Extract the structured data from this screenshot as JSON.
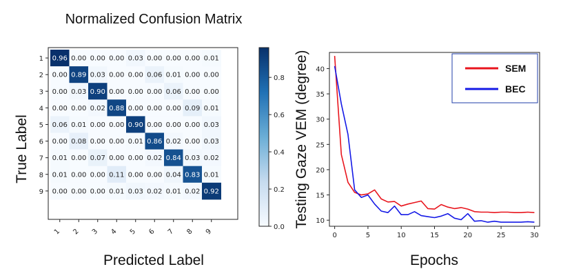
{
  "chart_data": [
    {
      "type": "heatmap",
      "title": "Normalized Confusion Matrix",
      "xlabel": "Predicted Label",
      "ylabel": "True Label",
      "x_tick_labels": [
        "1",
        "2",
        "3",
        "4",
        "5",
        "6",
        "7",
        "8",
        "9"
      ],
      "y_tick_labels": [
        "1",
        "2",
        "3",
        "4",
        "5",
        "6",
        "7",
        "8",
        "9"
      ],
      "matrix": [
        [
          0.96,
          0.0,
          0.0,
          0.0,
          0.03,
          0.0,
          0.0,
          0.0,
          0.01
        ],
        [
          0.0,
          0.89,
          0.03,
          0.0,
          0.0,
          0.06,
          0.01,
          0.0,
          0.0
        ],
        [
          0.0,
          0.03,
          0.9,
          0.0,
          0.0,
          0.0,
          0.06,
          0.0,
          0.0
        ],
        [
          0.0,
          0.0,
          0.02,
          0.88,
          0.0,
          0.0,
          0.0,
          0.09,
          0.01
        ],
        [
          0.06,
          0.01,
          0.0,
          0.0,
          0.9,
          0.0,
          0.0,
          0.0,
          0.03
        ],
        [
          0.0,
          0.08,
          0.0,
          0.0,
          0.01,
          0.86,
          0.02,
          0.0,
          0.03
        ],
        [
          0.01,
          0.0,
          0.07,
          0.0,
          0.0,
          0.02,
          0.84,
          0.03,
          0.02
        ],
        [
          0.01,
          0.0,
          0.0,
          0.11,
          0.0,
          0.0,
          0.04,
          0.83,
          0.01
        ],
        [
          0.0,
          0.0,
          0.0,
          0.01,
          0.03,
          0.02,
          0.01,
          0.02,
          0.92
        ]
      ],
      "colorbar": {
        "range": [
          0.0,
          0.96
        ],
        "ticks": [
          0.0,
          0.2,
          0.4,
          0.6,
          0.8
        ],
        "colormap": "Blues"
      }
    },
    {
      "type": "line",
      "title": "",
      "xlabel": "Epochs",
      "ylabel": "Testing  Gaze VEM (degree)",
      "xlim": [
        0,
        30
      ],
      "ylim": [
        8.8,
        43.2
      ],
      "x_ticks": [
        0,
        5,
        10,
        15,
        20,
        25,
        30
      ],
      "y_ticks": [
        10,
        15,
        20,
        25,
        30,
        35,
        40
      ],
      "legend_position": "top-right",
      "x": [
        0,
        1,
        2,
        3,
        4,
        5,
        6,
        7,
        8,
        9,
        10,
        11,
        12,
        13,
        14,
        15,
        16,
        17,
        18,
        19,
        20,
        21,
        22,
        23,
        24,
        25,
        26,
        27,
        28,
        29,
        30
      ],
      "series": [
        {
          "name": "SEM",
          "color": "#e8141c",
          "values": [
            42.5,
            23,
            17.5,
            15.5,
            15,
            15.2,
            16,
            14.2,
            13.6,
            13.7,
            12.8,
            13.2,
            13.5,
            13.8,
            12.3,
            12.2,
            13.1,
            12.6,
            12.3,
            12.5,
            12.2,
            11.7,
            11.6,
            11.6,
            11.5,
            11.6,
            11.6,
            11.5,
            11.5,
            11.6,
            11.5
          ]
        },
        {
          "name": "BEC",
          "color": "#1419e6",
          "values": [
            40.5,
            33,
            27,
            16,
            14.5,
            15,
            13.2,
            11.8,
            11.5,
            12.8,
            11.1,
            11.1,
            11.7,
            10.9,
            10.7,
            10.5,
            10.8,
            11.3,
            10.4,
            10.1,
            11.3,
            9.8,
            9.9,
            9.6,
            9.8,
            9.6,
            9.6,
            9.6,
            9.6,
            9.7,
            9.6
          ]
        }
      ]
    }
  ]
}
